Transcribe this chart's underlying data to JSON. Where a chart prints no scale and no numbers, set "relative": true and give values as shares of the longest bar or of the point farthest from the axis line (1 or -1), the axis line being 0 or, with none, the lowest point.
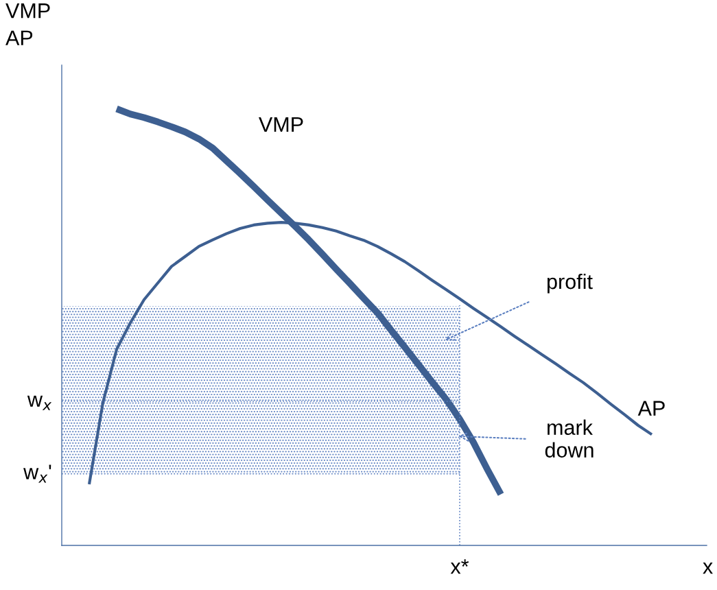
{
  "chart_data": {
    "type": "line",
    "relative": true,
    "ylabel": "VMP\nAP",
    "xlabel": "x",
    "categories": [
      null,
      null,
      null,
      null,
      null,
      null,
      null,
      null,
      null,
      null,
      null,
      null,
      null,
      null,
      null,
      null,
      null,
      null,
      null,
      null,
      null,
      null,
      null,
      null,
      null,
      null,
      null,
      null,
      null,
      null,
      null,
      null,
      null,
      null,
      null,
      null,
      null,
      null,
      null,
      null,
      null,
      null,
      null,
      null,
      null,
      null,
      null,
      null
    ],
    "series": [
      {
        "name": "VMP",
        "color": "#3d5f91",
        "values": [
          null,
          null,
          null,
          null,
          1.0,
          0.988,
          0.98,
          0.97,
          0.959,
          0.947,
          0.931,
          0.91,
          0.881,
          0.852,
          0.822,
          0.791,
          0.761,
          0.731,
          0.7,
          0.667,
          0.633,
          0.6,
          0.566,
          0.533,
          0.493,
          0.454,
          0.414,
          0.374,
          0.335,
          0.289,
          0.236,
          0.175,
          0.117,
          null,
          null,
          null,
          null,
          null,
          null,
          null,
          null,
          null,
          null,
          null,
          null,
          null,
          null,
          null
        ]
      },
      {
        "name": "AP",
        "color": "#3d5f91",
        "values": [
          null,
          null,
          0.14,
          0.327,
          0.449,
          0.51,
          0.563,
          0.601,
          0.639,
          0.662,
          0.685,
          0.7,
          0.714,
          0.726,
          0.734,
          0.738,
          0.74,
          0.738,
          0.734,
          0.728,
          0.72,
          0.709,
          0.699,
          0.685,
          0.668,
          0.65,
          0.629,
          0.607,
          0.586,
          0.565,
          0.543,
          0.522,
          0.501,
          0.479,
          0.458,
          0.437,
          0.416,
          0.394,
          0.373,
          0.349,
          0.324,
          0.3,
          0.275,
          0.254,
          null,
          null,
          null,
          null
        ]
      }
    ],
    "ref_lines": [
      {
        "axis": "y",
        "value": 0.33,
        "label": "w$_{x}$",
        "color": "#5b7fc0",
        "line_style": "dotted"
      },
      {
        "axis": "y",
        "value": 0.164,
        "label": "w$_{x}$'",
        "color": "#5b7fc0",
        "line_style": "dotted"
      }
    ],
    "bands": [
      {
        "axis": "y",
        "from": 0.33,
        "to": 0.548,
        "color": "#5b7fc0"
      },
      {
        "axis": "y",
        "from": 0.164,
        "to": 0.33,
        "color": "#5b7fc0"
      }
    ],
    "annotations": [
      "profit",
      "mark\ndown",
      "x*"
    ],
    "grid": false,
    "legend": false,
    "marker": "none",
    "line_style": "solid"
  }
}
